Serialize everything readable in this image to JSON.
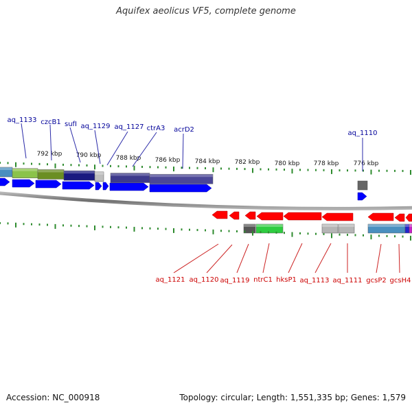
{
  "title": "Aquifex aeolicus VF5, complete genome",
  "footer": {
    "accession": "Accession: NC_000918",
    "stats": "Topology: circular; Length: 1,551,335 bp; Genes: 1,579"
  },
  "colors": {
    "forward_gene": "#0000ff",
    "reverse_gene": "#ff0000",
    "forward_label": "#000099",
    "reverse_label": "#cc0000",
    "backbone": "#777777",
    "ticks": "#2e8b2e"
  },
  "scale_labels": [
    "792 kbp",
    "790 kbp",
    "788 kbp",
    "786 kbp",
    "784 kbp",
    "782 kbp",
    "780 kbp",
    "778 kbp",
    "776 kbp"
  ],
  "forward_labels": [
    "aq_1133",
    "czcB1",
    "sufI",
    "aq_1129",
    "aq_1127",
    "ctrA3",
    "acrD2",
    "aq_1110"
  ],
  "reverse_labels": [
    "aq_1121",
    "aq_1120",
    "aq_1119",
    "ntrC1",
    "hksP1",
    "aq_1113",
    "aq_1111",
    "gcsP2",
    "gcsH4"
  ]
}
